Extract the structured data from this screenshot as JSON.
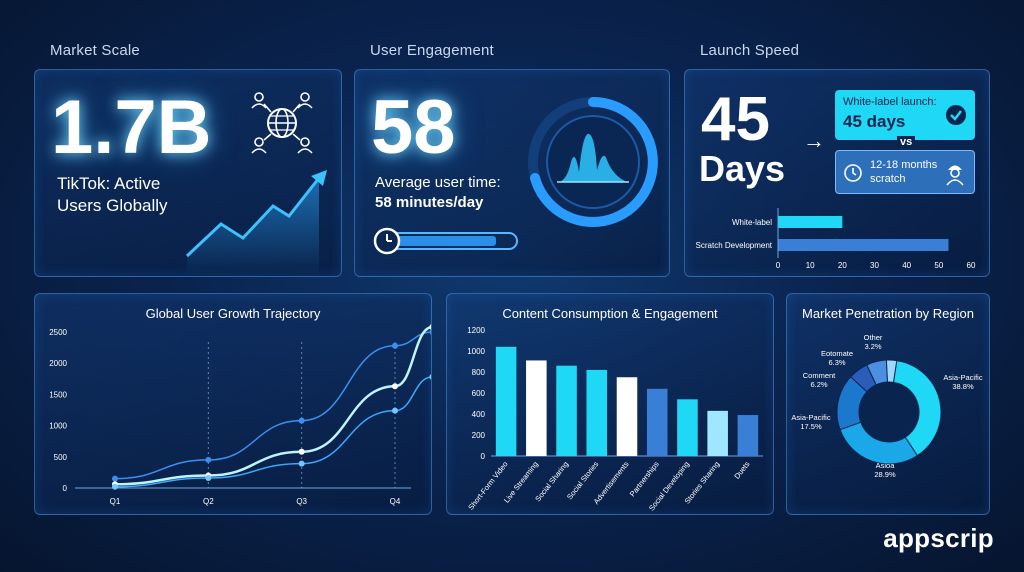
{
  "sections": {
    "market_scale": "Market Scale",
    "user_engagement": "User Engagement",
    "launch_speed": "Launch Speed"
  },
  "market": {
    "value": "1.7B",
    "label_line1": "TikTok: Active",
    "label_line2": "Users Globally"
  },
  "engagement": {
    "value": "58",
    "label": "Average user time:",
    "value_label": "58 minutes/day",
    "progress": 0.85
  },
  "launch": {
    "number": "45",
    "unit": "Days",
    "arrow": "→",
    "whitelabel_title": "White-label launch:",
    "whitelabel_value": "45 days",
    "vs": "vs",
    "scratch_line1": "12-18 months",
    "scratch_line2": "scratch"
  },
  "brand": "appscrip",
  "colors": {
    "accent": "#1fd8f5",
    "card_border": "#4aa0ff",
    "panel_bg": "#0b2a5a"
  },
  "chart_data": [
    {
      "type": "bar",
      "orientation": "horizontal",
      "categories": [
        "White-label",
        "Scratch Development"
      ],
      "values": [
        20,
        53
      ],
      "xlim": [
        0,
        60
      ],
      "xticks": [
        "0",
        "10",
        "20",
        "30",
        "40",
        "50",
        "60"
      ],
      "colors": [
        "#1fd8f5",
        "#3a7fd6"
      ]
    },
    {
      "type": "line",
      "title": "Global User Growth Trajectory",
      "categories": [
        "Q1",
        "Q2",
        "Q3",
        "Q4"
      ],
      "x": [
        0,
        1,
        2,
        3,
        3.4
      ],
      "yticks": [
        "0",
        "500",
        "1000",
        "1500",
        "2000",
        "2500"
      ],
      "ylim": [
        0,
        2500
      ],
      "series": [
        {
          "values": [
            150,
            450,
            1080,
            2280,
            2500
          ]
        },
        {
          "values": [
            60,
            200,
            580,
            1630,
            2580
          ]
        },
        {
          "values": [
            20,
            160,
            390,
            1240,
            1780
          ]
        }
      ]
    },
    {
      "type": "bar",
      "title": "Content Consumption & Engagement",
      "categories": [
        "Short-Form Video",
        "Live Streaming",
        "Social Sharing",
        "Social Stories",
        "Advertisements",
        "Partnerships",
        "Social Developing",
        "Stories Sharing",
        "Duets"
      ],
      "values": [
        1040,
        910,
        860,
        820,
        750,
        640,
        540,
        430,
        390
      ],
      "colors": [
        "#1fd8f5",
        "#ffffff",
        "#1fd8f5",
        "#1fd8f5",
        "#ffffff",
        "#3a7fd6",
        "#1fd8f5",
        "#9fe6ff",
        "#3a7fd6"
      ],
      "yticks": [
        "0",
        "200",
        "400",
        "600",
        "800",
        "1000",
        "1200"
      ],
      "ylim": [
        0,
        1200
      ]
    },
    {
      "type": "pie",
      "title": "Market Penetration by Region",
      "labels": [
        "Asia-Pacific",
        "Asia",
        "Asia-Pacific",
        "Comment",
        "Eotomate",
        "Other"
      ],
      "values": [
        38.8,
        28.9,
        17.5,
        6.2,
        6.3,
        3.2
      ],
      "value_labels": [
        "38.8%",
        "28.9%",
        "17.5%",
        "6.2%",
        "6.3%",
        "3.2%"
      ],
      "display_labels": [
        "Asia-Pacific",
        "Asioa",
        "Asia-Pacific",
        "Comment",
        "Eotomate",
        "Other"
      ],
      "colors": [
        "#1fd8f5",
        "#1aa8e8",
        "#1b78cc",
        "#2a5cb8",
        "#4a8fe0",
        "#9fd8ff"
      ]
    }
  ]
}
